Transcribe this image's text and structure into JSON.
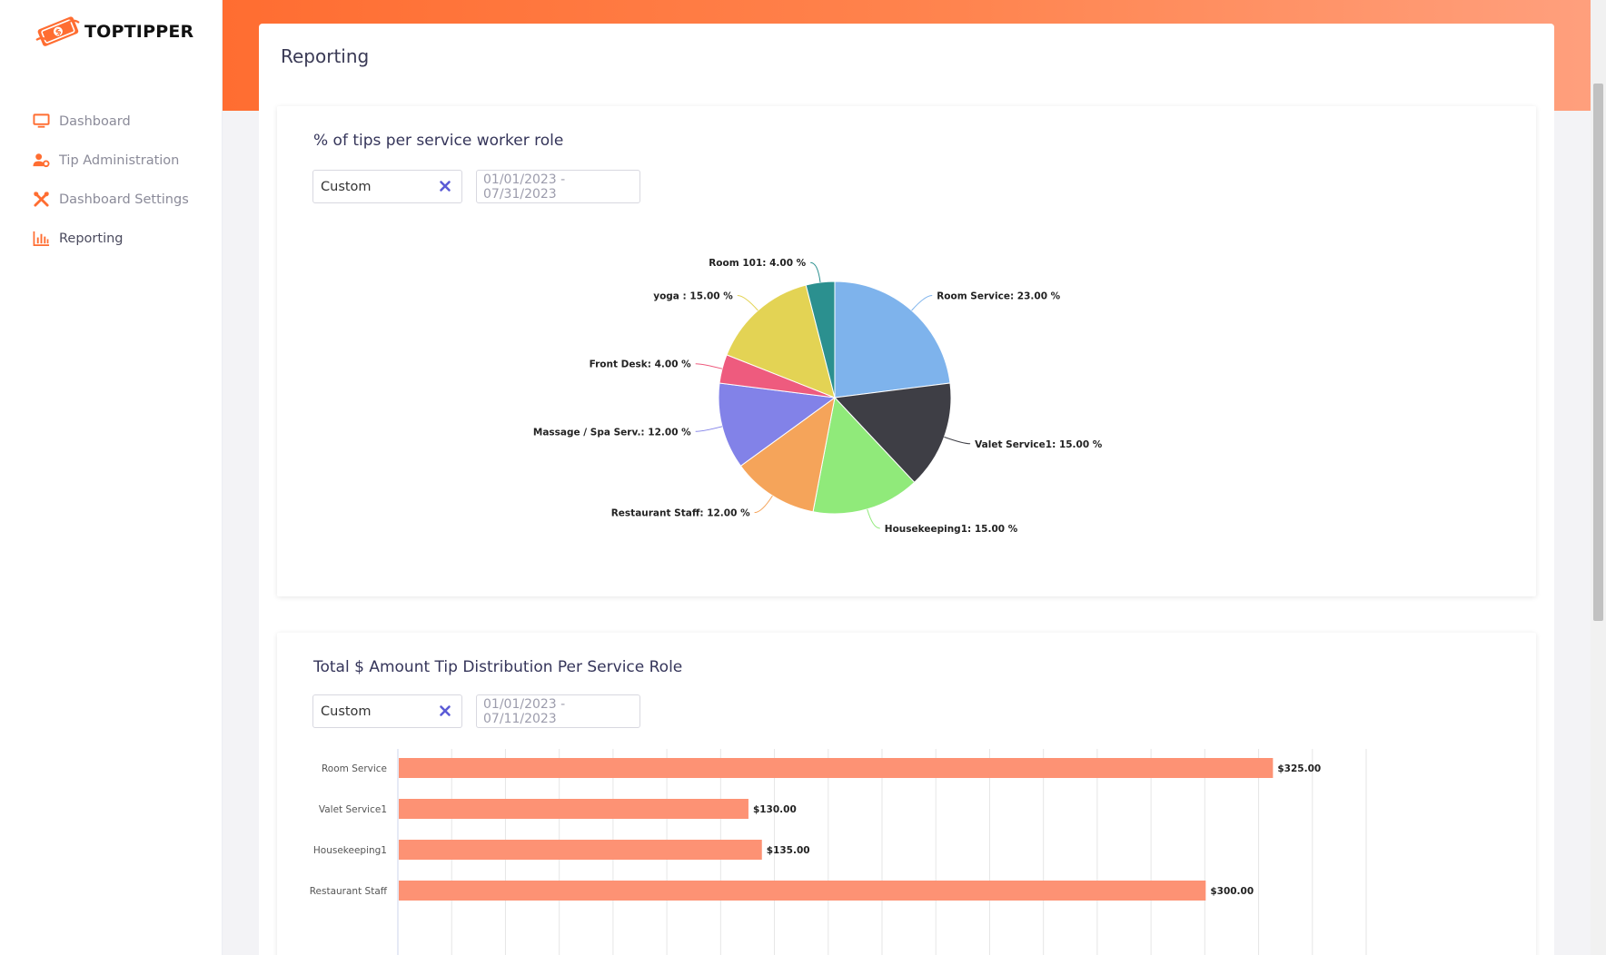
{
  "app": {
    "name": "TOPTIPPER"
  },
  "sidebar": {
    "items": [
      {
        "label": "Dashboard",
        "icon": "monitor-icon"
      },
      {
        "label": "Tip Administration",
        "icon": "user-cog-icon"
      },
      {
        "label": "Dashboard Settings",
        "icon": "tools-icon"
      },
      {
        "label": "Reporting",
        "icon": "bar-chart-icon",
        "active": true
      }
    ]
  },
  "page": {
    "title": "Reporting"
  },
  "colors": {
    "accent": "#ff6d31",
    "bar": "#fd9274"
  },
  "pie_card": {
    "title": "% of tips per service worker role",
    "filter_value": "Custom",
    "date_range": "01/01/2023 - 07/31/2023"
  },
  "bar_card": {
    "title": "Total $ Amount Tip Distribution Per Service Role",
    "filter_value": "Custom",
    "date_range": "01/01/2023 - 07/11/2023"
  },
  "chart_data": [
    {
      "type": "pie",
      "slices": [
        {
          "label": "Room Service",
          "value": 23.0,
          "display": "Room Service: 23.00 %",
          "color": "#7eb3ec"
        },
        {
          "label": "Valet Service1",
          "value": 15.0,
          "display": "Valet Service1: 15.00 %",
          "color": "#3e3e45"
        },
        {
          "label": "Housekeeping1",
          "value": 15.0,
          "display": "Housekeeping1: 15.00 %",
          "color": "#90ea7a"
        },
        {
          "label": "Restaurant Staff",
          "value": 12.0,
          "display": "Restaurant Staff: 12.00 %",
          "color": "#f5a45a"
        },
        {
          "label": "Massage / Spa Serv.",
          "value": 12.0,
          "display": "Massage / Spa Serv.: 12.00 %",
          "color": "#8282e8"
        },
        {
          "label": "Front Desk",
          "value": 4.0,
          "display": "Front Desk: 4.00 %",
          "color": "#ee5b7e"
        },
        {
          "label": "yoga",
          "value": 15.0,
          "display": "yoga : 15.00 %",
          "color": "#e3d354"
        },
        {
          "label": "Room 101",
          "value": 4.0,
          "display": "Room 101: 4.00 %",
          "color": "#2b908f"
        }
      ]
    },
    {
      "type": "bar",
      "orientation": "horizontal",
      "categories": [
        "Room Service",
        "Valet Service1",
        "Housekeeping1",
        "Restaurant Staff"
      ],
      "values": [
        325.0,
        130.0,
        135.0,
        300.0
      ],
      "data_labels": [
        "$325.00",
        "$130.00",
        "$135.00",
        "$300.00"
      ],
      "xlim": [
        0,
        360
      ],
      "grid": true
    }
  ]
}
